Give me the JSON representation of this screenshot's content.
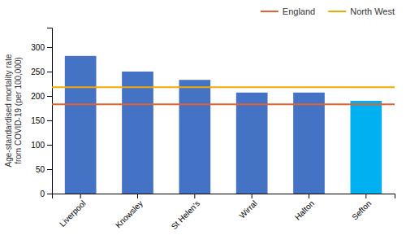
{
  "chart_data": {
    "type": "bar",
    "categories": [
      "Liverpool",
      "Knowsley",
      "St Helen's",
      "Wirral",
      "Halton",
      "Sefton"
    ],
    "values": [
      282,
      250,
      233,
      207,
      207,
      190
    ],
    "colors": [
      "#4472C4",
      "#4472C4",
      "#4472C4",
      "#4472C4",
      "#4472C4",
      "#00B0F0"
    ],
    "reference_lines": [
      {
        "name": "England",
        "value": 183,
        "color": "#E8602C"
      },
      {
        "name": "North West",
        "value": 218,
        "color": "#F5A800"
      }
    ],
    "ylabel": "Age-standardised mortality rate\nfrom COVID-19 (per 100,000)",
    "ylim": [
      0,
      340
    ],
    "yticks": [
      0,
      50,
      100,
      150,
      200,
      250,
      300
    ],
    "grid": false,
    "legend": "top"
  }
}
